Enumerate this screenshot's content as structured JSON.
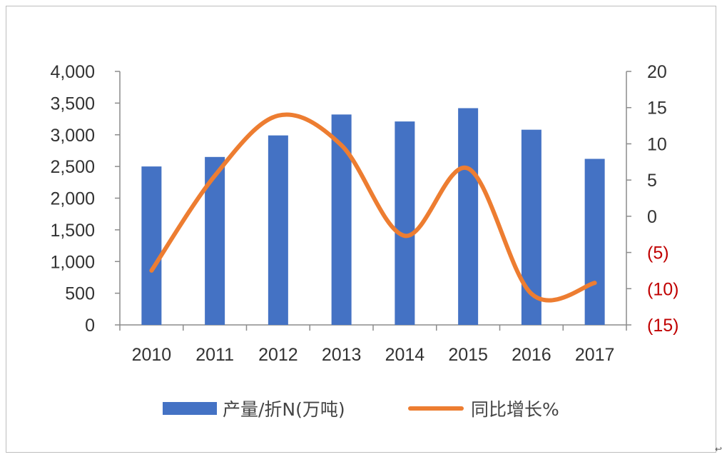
{
  "chart_data": {
    "type": "bar+line",
    "categories": [
      "2010",
      "2011",
      "2012",
      "2013",
      "2014",
      "2015",
      "2016",
      "2017"
    ],
    "series": [
      {
        "name": "产量/折N(万吨)",
        "type": "bar",
        "axis": "left",
        "color": "#4472C4",
        "values": [
          2500,
          2650,
          2990,
          3320,
          3210,
          3420,
          3080,
          2620
        ]
      },
      {
        "name": "同比增长%",
        "type": "line",
        "axis": "right",
        "color": "#ED7D31",
        "smooth": true,
        "values": [
          -7.5,
          5.6,
          13.9,
          9.8,
          -2.7,
          6.6,
          -10.7,
          -9.2
        ]
      }
    ],
    "left_axis": {
      "ylim": [
        0,
        4000
      ],
      "ticks": [
        0,
        500,
        1000,
        1500,
        2000,
        2500,
        3000,
        3500,
        4000
      ],
      "tick_labels": [
        "0",
        "500",
        "1,000",
        "1,500",
        "2,000",
        "2,500",
        "3,000",
        "3,500",
        "4,000"
      ]
    },
    "right_axis": {
      "ylim": [
        -15,
        20
      ],
      "ticks": [
        20,
        15,
        10,
        5,
        0,
        -5,
        -10,
        -15
      ],
      "tick_labels": [
        "20",
        "15",
        "10",
        "5",
        "0",
        "(5)",
        "(10)",
        "(15)"
      ],
      "negative_label_color": "#C00000"
    },
    "grid": false,
    "legend_position": "bottom",
    "title": "",
    "xlabel": "",
    "ylabel": ""
  },
  "corner_mark": "↩"
}
